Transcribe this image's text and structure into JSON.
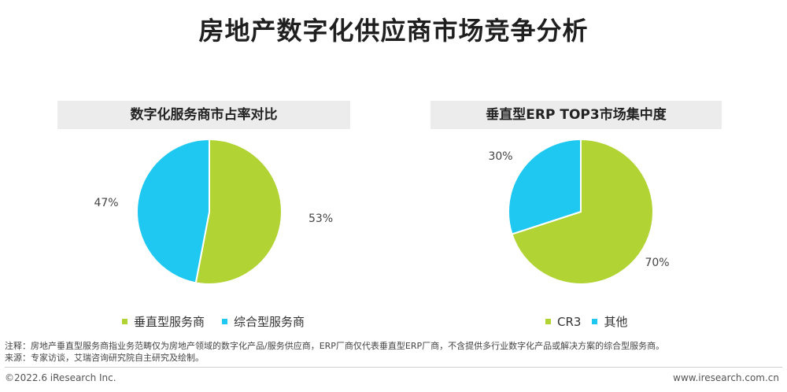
{
  "title": "房地产数字化供应商市场竞争分析",
  "colors": {
    "green": "#b1d334",
    "blue": "#1ec8f0"
  },
  "chart_data": [
    {
      "type": "pie",
      "title": "数字化服务商市占率对比",
      "slices": [
        {
          "label": "垂直型服务商",
          "value": 53,
          "display": "53%"
        },
        {
          "label": "综合型服务商",
          "value": 47,
          "display": "47%"
        }
      ],
      "legend": [
        "垂直型服务商",
        "综合型服务商"
      ],
      "legend_position": "bottom"
    },
    {
      "type": "pie",
      "title": "垂直型ERP TOP3市场集中度",
      "slices": [
        {
          "label": "CR3",
          "value": 70,
          "display": "70%"
        },
        {
          "label": "其他",
          "value": 30,
          "display": "30%"
        }
      ],
      "legend": [
        "CR3",
        "其他"
      ],
      "legend_position": "bottom"
    }
  ],
  "notes": {
    "line1": "注释：房地产垂直型服务商指业务范畴仅为房地产领域的数字化产品/服务供应商，ERP厂商仅代表垂直型ERP厂商，不含提供多行业数字化产品或解决方案的综合型服务商。",
    "line2": "来源：专家访谈，艾瑞咨询研究院自主研究及绘制。"
  },
  "footer": {
    "copyright": "©2022.6 iResearch Inc.",
    "website": "www.iresearch.com.cn"
  }
}
